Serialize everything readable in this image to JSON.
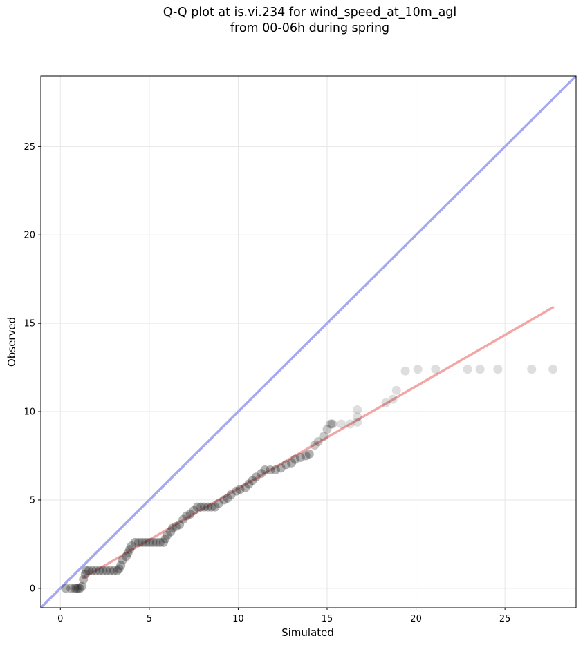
{
  "chart_data": {
    "type": "scatter",
    "title": [
      "Q-Q plot at is.vi.234 for wind_speed_at_10m_agl",
      "from 00-06h during spring"
    ],
    "xlabel": "Simulated",
    "ylabel": "Observed",
    "xlim": [
      -1.1,
      29
    ],
    "ylim": [
      -1.1,
      29
    ],
    "xticks": [
      0,
      5,
      10,
      15,
      20,
      25
    ],
    "yticks": [
      0,
      5,
      10,
      15,
      20,
      25
    ],
    "grid": true,
    "colors": {
      "identity_line": "#a6a9f2",
      "fit_line": "#f2a6a6",
      "points": "#222222"
    },
    "series": [
      {
        "kind": "reference-line",
        "points": [
          [
            -1.1,
            -1.1
          ],
          [
            29,
            29
          ]
        ]
      },
      {
        "kind": "fit-line",
        "points": [
          [
            1.3,
            0.6
          ],
          [
            27.7,
            15.9
          ]
        ]
      },
      {
        "kind": "quantiles",
        "points": [
          [
            0.3,
            0.0
          ],
          [
            0.6,
            0.0
          ],
          [
            0.8,
            0.0
          ],
          [
            0.9,
            0.0
          ],
          [
            1.0,
            0.0
          ],
          [
            1.1,
            0.0
          ],
          [
            1.2,
            0.1
          ],
          [
            1.3,
            0.5
          ],
          [
            1.4,
            0.8
          ],
          [
            1.45,
            1.0
          ],
          [
            1.6,
            1.0
          ],
          [
            1.8,
            1.0
          ],
          [
            2.0,
            1.0
          ],
          [
            2.2,
            1.0
          ],
          [
            2.4,
            1.0
          ],
          [
            2.6,
            1.0
          ],
          [
            2.8,
            1.0
          ],
          [
            3.0,
            1.0
          ],
          [
            3.2,
            1.0
          ],
          [
            3.3,
            1.1
          ],
          [
            3.4,
            1.3
          ],
          [
            3.5,
            1.6
          ],
          [
            3.7,
            1.8
          ],
          [
            3.8,
            2.0
          ],
          [
            3.9,
            2.2
          ],
          [
            4.0,
            2.4
          ],
          [
            4.2,
            2.6
          ],
          [
            4.4,
            2.6
          ],
          [
            4.6,
            2.6
          ],
          [
            4.8,
            2.6
          ],
          [
            5.0,
            2.6
          ],
          [
            5.2,
            2.6
          ],
          [
            5.4,
            2.6
          ],
          [
            5.6,
            2.6
          ],
          [
            5.8,
            2.6
          ],
          [
            5.9,
            2.8
          ],
          [
            6.0,
            3.0
          ],
          [
            6.2,
            3.2
          ],
          [
            6.3,
            3.4
          ],
          [
            6.5,
            3.5
          ],
          [
            6.7,
            3.6
          ],
          [
            6.9,
            3.9
          ],
          [
            7.1,
            4.1
          ],
          [
            7.3,
            4.2
          ],
          [
            7.5,
            4.4
          ],
          [
            7.7,
            4.6
          ],
          [
            7.9,
            4.6
          ],
          [
            8.1,
            4.6
          ],
          [
            8.3,
            4.6
          ],
          [
            8.5,
            4.6
          ],
          [
            8.7,
            4.6
          ],
          [
            8.9,
            4.8
          ],
          [
            9.2,
            5.0
          ],
          [
            9.4,
            5.1
          ],
          [
            9.6,
            5.3
          ],
          [
            9.9,
            5.5
          ],
          [
            10.1,
            5.6
          ],
          [
            10.4,
            5.7
          ],
          [
            10.6,
            5.9
          ],
          [
            10.8,
            6.1
          ],
          [
            11.0,
            6.3
          ],
          [
            11.3,
            6.5
          ],
          [
            11.5,
            6.7
          ],
          [
            11.8,
            6.7
          ],
          [
            12.1,
            6.7
          ],
          [
            12.4,
            6.8
          ],
          [
            12.7,
            7.0
          ],
          [
            13.0,
            7.1
          ],
          [
            13.2,
            7.3
          ],
          [
            13.5,
            7.4
          ],
          [
            13.8,
            7.5
          ],
          [
            14.0,
            7.6
          ],
          [
            14.3,
            8.1
          ],
          [
            14.5,
            8.3
          ],
          [
            14.8,
            8.6
          ],
          [
            15.0,
            9.0
          ],
          [
            15.2,
            9.3
          ],
          [
            15.3,
            9.3
          ],
          [
            15.8,
            9.3
          ],
          [
            16.3,
            9.3
          ],
          [
            16.7,
            9.4
          ],
          [
            16.7,
            9.7
          ],
          [
            16.7,
            10.1
          ],
          [
            18.3,
            10.5
          ],
          [
            18.7,
            10.7
          ],
          [
            18.9,
            11.2
          ],
          [
            19.4,
            12.3
          ],
          [
            20.1,
            12.4
          ],
          [
            21.1,
            12.4
          ],
          [
            22.9,
            12.4
          ],
          [
            23.6,
            12.4
          ],
          [
            24.6,
            12.4
          ],
          [
            26.5,
            12.4
          ],
          [
            27.7,
            12.4
          ]
        ]
      }
    ]
  }
}
